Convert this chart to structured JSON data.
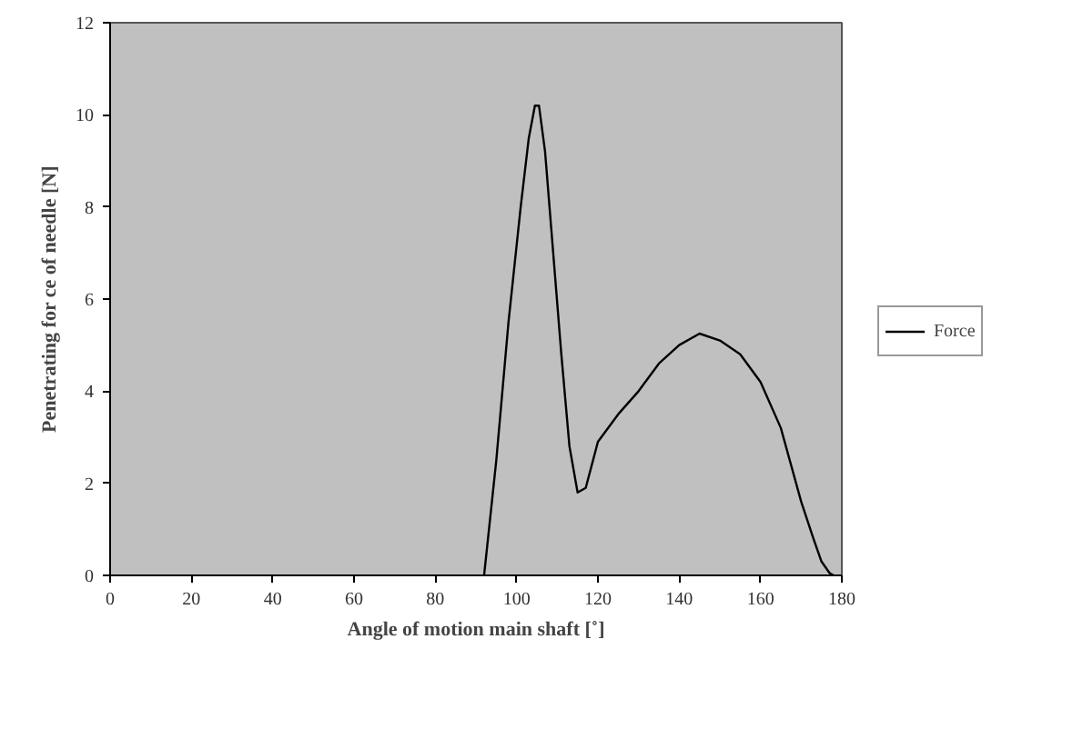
{
  "chart_data": {
    "type": "line",
    "xlabel": "Angle of motion main shaft [˚]",
    "ylabel": "Penetrating for ce of needle [N]",
    "x": [
      92,
      95,
      98,
      101,
      103,
      104.5,
      105.5,
      107,
      109,
      111,
      113,
      115,
      117,
      120,
      125,
      130,
      135,
      140,
      145,
      150,
      155,
      160,
      165,
      170,
      173,
      175,
      177,
      178
    ],
    "series": [
      {
        "name": "Force",
        "color": "#000000",
        "values": [
          0,
          2.5,
          5.5,
          8,
          9.5,
          10.2,
          10.2,
          9.2,
          7,
          4.8,
          2.8,
          1.8,
          1.9,
          2.9,
          3.5,
          4.0,
          4.6,
          5.0,
          5.25,
          5.1,
          4.8,
          4.2,
          3.2,
          1.6,
          0.8,
          0.3,
          0.05,
          0
        ]
      }
    ],
    "xlim": [
      0,
      180
    ],
    "xticks": [
      0,
      20,
      40,
      60,
      80,
      100,
      120,
      140,
      160,
      180
    ],
    "ylim": [
      0,
      12
    ],
    "yticks": [
      0,
      2,
      4,
      6,
      8,
      10,
      12
    ],
    "grid": false,
    "legend": "right",
    "line_style": "solid",
    "marker": "none"
  }
}
